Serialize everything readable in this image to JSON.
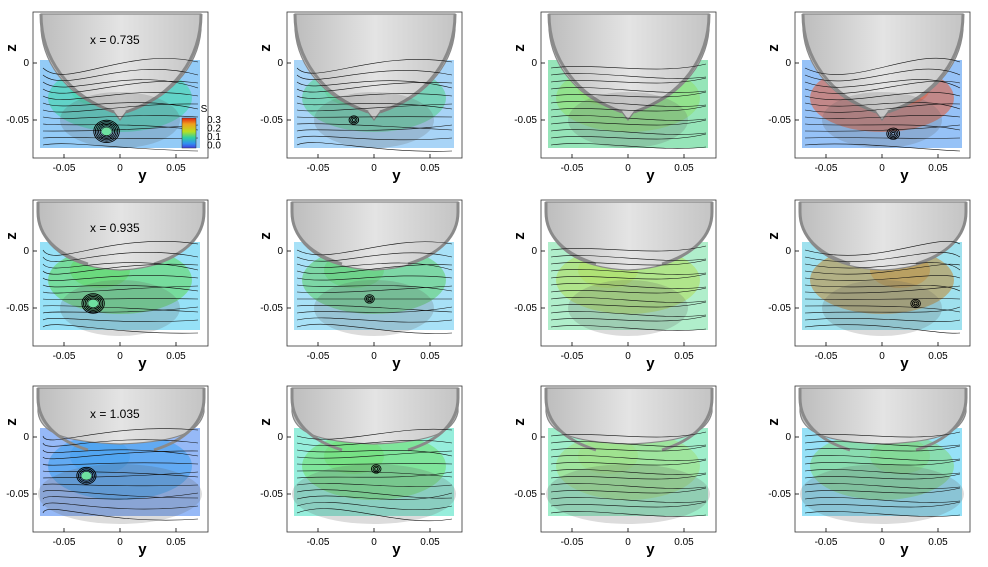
{
  "figure": {
    "axis_labels": {
      "x": "y",
      "y": "z"
    },
    "x_ticks": [
      "-0.05",
      "0",
      "0.05"
    ],
    "y_ticks": [
      "0",
      "-0.05"
    ],
    "colorbar": {
      "label": "S",
      "ticks": [
        "0.3",
        "0.2",
        "0.1",
        "0.0"
      ],
      "colors": [
        "#e02010",
        "#f0a020",
        "#b8e020",
        "#30d0a0",
        "#3090f0",
        "#4040e0"
      ]
    },
    "rows": [
      {
        "annotation": "x = 0.735",
        "panels": [
          {
            "band": "#3aa0f0",
            "tint": "#40d8a8",
            "vortex": [
              -0.012,
              -0.06
            ],
            "vortexSize": 1.0
          },
          {
            "band": "#60b0f0",
            "tint": "#58d090",
            "vortex": [
              -0.018,
              -0.05
            ],
            "vortexSize": 0.4
          },
          {
            "band": "#40d080",
            "tint": "#90e070",
            "vortex": null,
            "vortexSize": 0
          },
          {
            "band": "#4090f0",
            "tint": "#e06040",
            "vortex": [
              0.01,
              -0.062
            ],
            "vortexSize": 0.5
          }
        ]
      },
      {
        "annotation": "x = 0.935",
        "panels": [
          {
            "band": "#40c8f0",
            "tint": "#60d860",
            "vortex": [
              -0.024,
              -0.046
            ],
            "vortexSize": 0.9
          },
          {
            "band": "#60c8f0",
            "tint": "#60d070",
            "vortex": [
              -0.004,
              -0.042
            ],
            "vortexSize": 0.4
          },
          {
            "band": "#70e0a0",
            "tint": "#b0e060",
            "vortex": null,
            "vortexSize": 0
          },
          {
            "band": "#50c8e0",
            "tint": "#c09040",
            "vortex": [
              0.03,
              -0.046
            ],
            "vortexSize": 0.4
          }
        ]
      },
      {
        "annotation": "x = 1.035",
        "panels": [
          {
            "band": "#4080f0",
            "tint": "#40a0f0",
            "vortex": [
              -0.03,
              -0.034
            ],
            "vortexSize": 0.8
          },
          {
            "band": "#40e0c0",
            "tint": "#70e070",
            "vortex": [
              0.002,
              -0.028
            ],
            "vortexSize": 0.4
          },
          {
            "band": "#50e0a0",
            "tint": "#a0e080",
            "vortex": null,
            "vortexSize": 0
          },
          {
            "band": "#40c8f0",
            "tint": "#80d880",
            "vortex": null,
            "vortexSize": 0
          }
        ]
      }
    ]
  }
}
